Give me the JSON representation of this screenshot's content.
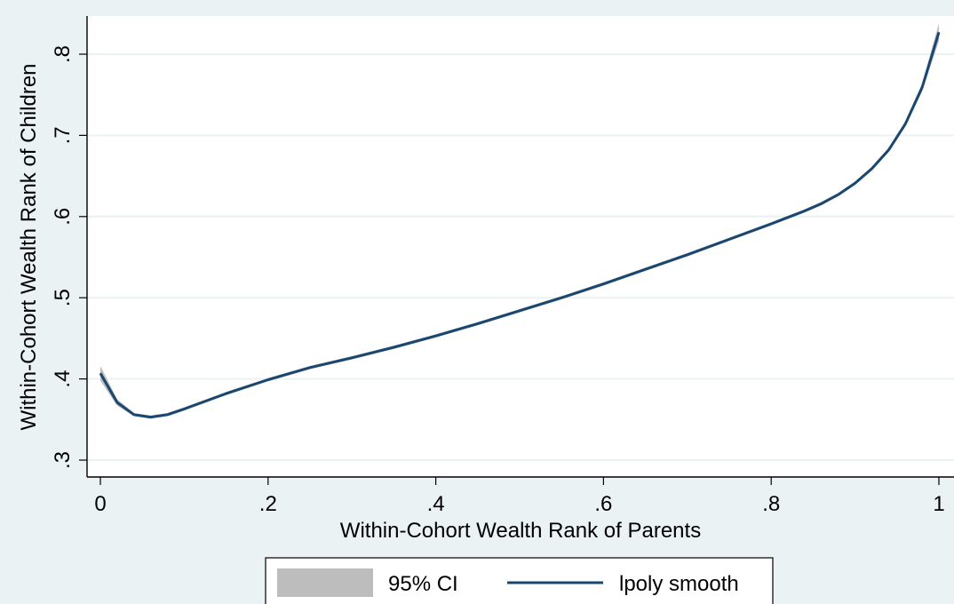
{
  "chart_data": {
    "type": "line",
    "title": "",
    "xlabel": "Within-Cohort Wealth Rank of Parents",
    "ylabel": "Within-Cohort Wealth Rank of Children",
    "xlim": [
      0,
      1
    ],
    "ylim": [
      0.3,
      0.84
    ],
    "x_ticks": [
      0,
      0.2,
      0.4,
      0.6,
      0.8,
      1
    ],
    "x_tick_labels": [
      "0",
      ".2",
      ".4",
      ".6",
      ".8",
      "1"
    ],
    "y_ticks": [
      0.3,
      0.4,
      0.5,
      0.6,
      0.7,
      0.8
    ],
    "y_tick_labels": [
      ".3",
      ".4",
      ".5",
      ".6",
      ".7",
      ".8"
    ],
    "grid": true,
    "legend_position": "bottom",
    "series": [
      {
        "name": "lpoly smooth",
        "color": "#1a476f",
        "x": [
          0,
          0.02,
          0.04,
          0.06,
          0.08,
          0.1,
          0.15,
          0.2,
          0.25,
          0.3,
          0.35,
          0.4,
          0.45,
          0.5,
          0.55,
          0.6,
          0.65,
          0.7,
          0.75,
          0.8,
          0.82,
          0.84,
          0.86,
          0.88,
          0.9,
          0.92,
          0.94,
          0.96,
          0.98,
          1.0
        ],
        "y": [
          0.407,
          0.371,
          0.356,
          0.353,
          0.356,
          0.363,
          0.382,
          0.399,
          0.414,
          0.426,
          0.439,
          0.453,
          0.468,
          0.484,
          0.5,
          0.517,
          0.535,
          0.553,
          0.572,
          0.591,
          0.599,
          0.607,
          0.616,
          0.627,
          0.641,
          0.659,
          0.682,
          0.714,
          0.759,
          0.827
        ]
      }
    ],
    "ci": {
      "name": "95% CI",
      "color": "#bdbdbd",
      "halfwidth_x": [
        0,
        0.02,
        0.04,
        0.1,
        0.9,
        0.96,
        0.98,
        1.0
      ],
      "halfwidth": [
        0.009,
        0.004,
        0.002,
        0.002,
        0.002,
        0.003,
        0.005,
        0.011
      ]
    }
  }
}
